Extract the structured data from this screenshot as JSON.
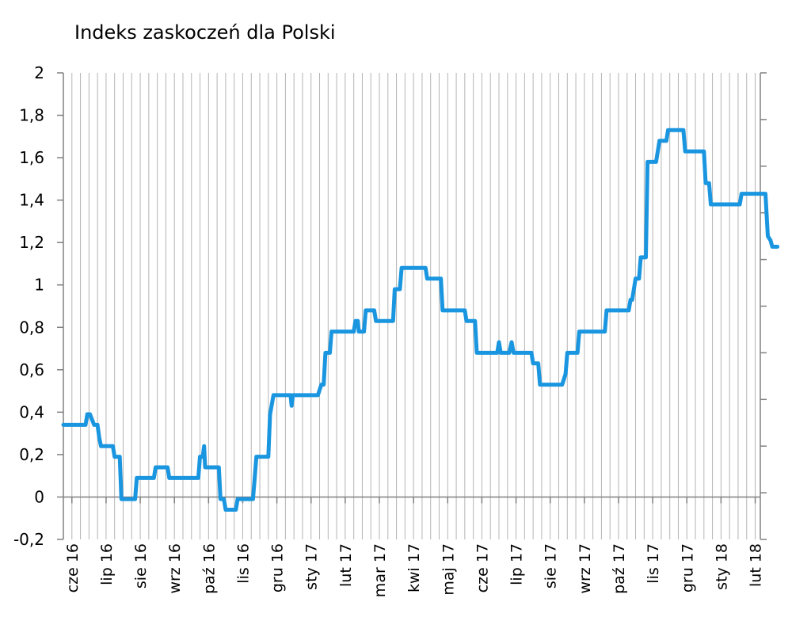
{
  "chart_data": {
    "type": "line",
    "title": "Indeks zaskoczeń dla Polski",
    "xlabel": "",
    "ylabel": "",
    "ylim": [
      -0.2,
      2
    ],
    "yticks": [
      {
        "value": -0.2,
        "label": "-0,2"
      },
      {
        "value": 0,
        "label": "0"
      },
      {
        "value": 0.2,
        "label": "0,2"
      },
      {
        "value": 0.4,
        "label": "0,4"
      },
      {
        "value": 0.6,
        "label": "0,6"
      },
      {
        "value": 0.8,
        "label": "0,8"
      },
      {
        "value": 1,
        "label": "1"
      },
      {
        "value": 1.2,
        "label": "1,2"
      },
      {
        "value": 1.4,
        "label": "1,4"
      },
      {
        "value": 1.6,
        "label": "1,6"
      },
      {
        "value": 1.8,
        "label": "1,8"
      },
      {
        "value": 2,
        "label": "2"
      }
    ],
    "xlim": [
      0,
      20.4
    ],
    "xticks": [
      {
        "value": 0.25,
        "label": "cze 16"
      },
      {
        "value": 1.25,
        "label": "lip 16"
      },
      {
        "value": 2.25,
        "label": "sie 16"
      },
      {
        "value": 3.25,
        "label": "wrz 16"
      },
      {
        "value": 4.25,
        "label": "paź 16"
      },
      {
        "value": 5.25,
        "label": "lis 16"
      },
      {
        "value": 6.25,
        "label": "gru 16"
      },
      {
        "value": 7.25,
        "label": "sty 17"
      },
      {
        "value": 8.25,
        "label": "lut 17"
      },
      {
        "value": 9.25,
        "label": "mar 17"
      },
      {
        "value": 10.25,
        "label": "kwi 17"
      },
      {
        "value": 11.25,
        "label": "maj 17"
      },
      {
        "value": 12.25,
        "label": "cze 17"
      },
      {
        "value": 13.25,
        "label": "lip 17"
      },
      {
        "value": 14.25,
        "label": "sie 17"
      },
      {
        "value": 15.25,
        "label": "wrz 17"
      },
      {
        "value": 16.25,
        "label": "paź 17"
      },
      {
        "value": 17.25,
        "label": "lis 17"
      },
      {
        "value": 18.25,
        "label": "gru 17"
      },
      {
        "value": 19.25,
        "label": "sty 18"
      },
      {
        "value": 20.25,
        "label": "lut 18"
      }
    ],
    "gridlines_per_month": 4,
    "grid": true,
    "legend": "none",
    "series": [
      {
        "color": "#1a96e0",
        "points": [
          [
            0,
            0.34
          ],
          [
            0.65,
            0.34
          ],
          [
            0.7,
            0.39
          ],
          [
            0.78,
            0.39
          ],
          [
            0.9,
            0.34
          ],
          [
            1.0,
            0.34
          ],
          [
            1.05,
            0.28
          ],
          [
            1.1,
            0.24
          ],
          [
            1.45,
            0.24
          ],
          [
            1.5,
            0.19
          ],
          [
            1.65,
            0.19
          ],
          [
            1.7,
            -0.01
          ],
          [
            2.1,
            -0.01
          ],
          [
            2.15,
            0.09
          ],
          [
            2.65,
            0.09
          ],
          [
            2.7,
            0.14
          ],
          [
            3.05,
            0.14
          ],
          [
            3.1,
            0.09
          ],
          [
            3.95,
            0.09
          ],
          [
            4.0,
            0.19
          ],
          [
            4.08,
            0.19
          ],
          [
            4.12,
            0.24
          ],
          [
            4.15,
            0.14
          ],
          [
            4.55,
            0.14
          ],
          [
            4.6,
            -0.01
          ],
          [
            4.7,
            -0.01
          ],
          [
            4.75,
            -0.06
          ],
          [
            5.05,
            -0.06
          ],
          [
            5.1,
            -0.01
          ],
          [
            5.55,
            -0.01
          ],
          [
            5.6,
            0.09
          ],
          [
            5.65,
            0.19
          ],
          [
            6.0,
            0.19
          ],
          [
            6.05,
            0.39
          ],
          [
            6.15,
            0.48
          ],
          [
            6.65,
            0.48
          ],
          [
            6.68,
            0.43
          ],
          [
            6.72,
            0.48
          ],
          [
            7.45,
            0.48
          ],
          [
            7.55,
            0.53
          ],
          [
            7.62,
            0.53
          ],
          [
            7.67,
            0.68
          ],
          [
            7.8,
            0.68
          ],
          [
            7.85,
            0.78
          ],
          [
            8.5,
            0.78
          ],
          [
            8.55,
            0.83
          ],
          [
            8.62,
            0.83
          ],
          [
            8.65,
            0.78
          ],
          [
            8.8,
            0.78
          ],
          [
            8.85,
            0.88
          ],
          [
            9.1,
            0.88
          ],
          [
            9.15,
            0.83
          ],
          [
            9.65,
            0.83
          ],
          [
            9.7,
            0.98
          ],
          [
            9.85,
            0.98
          ],
          [
            9.9,
            1.08
          ],
          [
            10.6,
            1.08
          ],
          [
            10.65,
            1.03
          ],
          [
            11.05,
            1.03
          ],
          [
            11.1,
            0.88
          ],
          [
            11.75,
            0.88
          ],
          [
            11.8,
            0.83
          ],
          [
            12.05,
            0.83
          ],
          [
            12.1,
            0.68
          ],
          [
            12.7,
            0.68
          ],
          [
            12.75,
            0.73
          ],
          [
            12.8,
            0.68
          ],
          [
            13.05,
            0.68
          ],
          [
            13.12,
            0.73
          ],
          [
            13.18,
            0.68
          ],
          [
            13.7,
            0.68
          ],
          [
            13.75,
            0.63
          ],
          [
            13.9,
            0.63
          ],
          [
            13.95,
            0.53
          ],
          [
            14.6,
            0.53
          ],
          [
            14.7,
            0.58
          ],
          [
            14.75,
            0.68
          ],
          [
            15.05,
            0.68
          ],
          [
            15.1,
            0.78
          ],
          [
            15.85,
            0.78
          ],
          [
            15.9,
            0.88
          ],
          [
            16.55,
            0.88
          ],
          [
            16.6,
            0.93
          ],
          [
            16.65,
            0.93
          ],
          [
            16.75,
            1.03
          ],
          [
            16.85,
            1.03
          ],
          [
            16.9,
            1.13
          ],
          [
            17.05,
            1.13
          ],
          [
            17.1,
            1.58
          ],
          [
            17.35,
            1.58
          ],
          [
            17.45,
            1.68
          ],
          [
            17.65,
            1.68
          ],
          [
            17.7,
            1.73
          ],
          [
            18.15,
            1.73
          ],
          [
            18.2,
            1.63
          ],
          [
            18.75,
            1.63
          ],
          [
            18.8,
            1.48
          ],
          [
            18.9,
            1.48
          ],
          [
            18.95,
            1.38
          ],
          [
            19.8,
            1.38
          ],
          [
            19.85,
            1.43
          ],
          [
            20.55,
            1.43
          ],
          [
            20.62,
            1.23
          ],
          [
            20.7,
            1.21
          ],
          [
            20.75,
            1.18
          ],
          [
            20.9,
            1.18
          ]
        ]
      }
    ]
  }
}
